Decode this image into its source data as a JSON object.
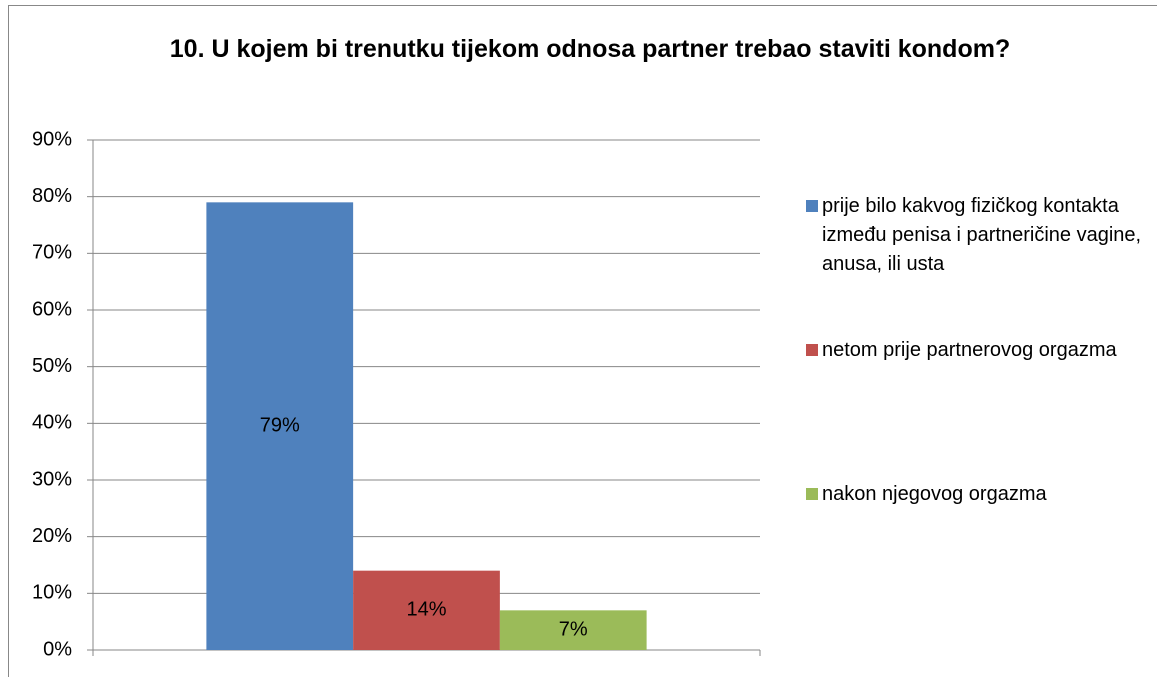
{
  "chart_data": {
    "type": "bar",
    "title": "10. U kojem bi trenutku tijekom odnosa partner trebao staviti kondom?",
    "categories": [
      null
    ],
    "series": [
      {
        "name": "prije bilo kakvog fizičkog kontakta između penisa i partneričine vagine, anusa, ili usta",
        "color": "#4f81bd",
        "values": [
          79
        ],
        "value_labels": [
          "79%"
        ]
      },
      {
        "name": "netom prije partnerovog orgazma",
        "color": "#c0504d",
        "values": [
          14
        ],
        "value_labels": [
          "14%"
        ]
      },
      {
        "name": "nakon njegovog orgazma",
        "color": "#9bbb59",
        "values": [
          7
        ],
        "value_labels": [
          "7%"
        ]
      }
    ],
    "ylim": [
      0,
      90
    ],
    "yticks": [
      {
        "value": 0,
        "label": "0%"
      },
      {
        "value": 10,
        "label": "10%"
      },
      {
        "value": 20,
        "label": "20%"
      },
      {
        "value": 30,
        "label": "30%"
      },
      {
        "value": 40,
        "label": "40%"
      },
      {
        "value": 50,
        "label": "50%"
      },
      {
        "value": 60,
        "label": "60%"
      },
      {
        "value": 70,
        "label": "70%"
      },
      {
        "value": 80,
        "label": "80%"
      },
      {
        "value": 90,
        "label": "90%"
      }
    ],
    "grid": true,
    "legend": "right"
  }
}
